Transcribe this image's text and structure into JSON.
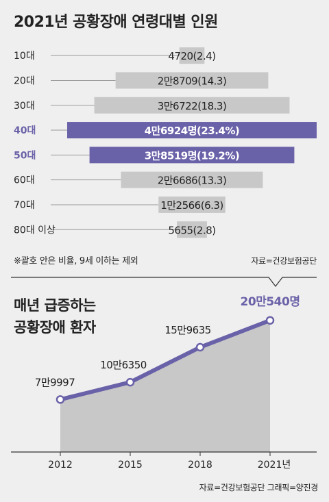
{
  "title_top": "2021년 공황장애 연령대별 인원",
  "note": "※괄호 안은 비율, 9세 이하는 제외",
  "source_top": "자료=건강보험공단",
  "title_bottom_line1": "매년 급증하는",
  "title_bottom_line2": "공황장애 환자",
  "source_bottom": "자료=건강보험공단  그래픽=양진경",
  "colors": {
    "gray_bar": "#c8c8c8",
    "purple": "#6a62a8",
    "area": "#c8c8c8",
    "line": "#6a62a8"
  },
  "chart_data": [
    {
      "type": "bar",
      "orientation": "horizontal-centered",
      "categories": [
        "10대",
        "20대",
        "30대",
        "40대",
        "50대",
        "60대",
        "70대",
        "80대 이상"
      ],
      "values": [
        4720,
        28709,
        36722,
        46924,
        38519,
        26686,
        12566,
        5655
      ],
      "percent": [
        2.4,
        14.3,
        18.3,
        23.4,
        19.2,
        13.3,
        6.3,
        2.8
      ],
      "labels": [
        "4720(2.4)",
        "2만8709(14.3)",
        "3만6722(18.3)",
        "4만6924명(23.4%)",
        "3만8519명(19.2%)",
        "2만6686(13.3)",
        "1만2566(6.3)",
        "5655(2.8)"
      ],
      "highlight": [
        "40대",
        "50대"
      ]
    },
    {
      "type": "area",
      "categories": [
        "2012",
        "2015",
        "2018",
        "2021년"
      ],
      "values": [
        79997,
        106350,
        159635,
        200540
      ],
      "labels": [
        "7만9997",
        "10만6350",
        "15만9635",
        "20만540명"
      ],
      "ylim": [
        0,
        240000
      ]
    }
  ]
}
